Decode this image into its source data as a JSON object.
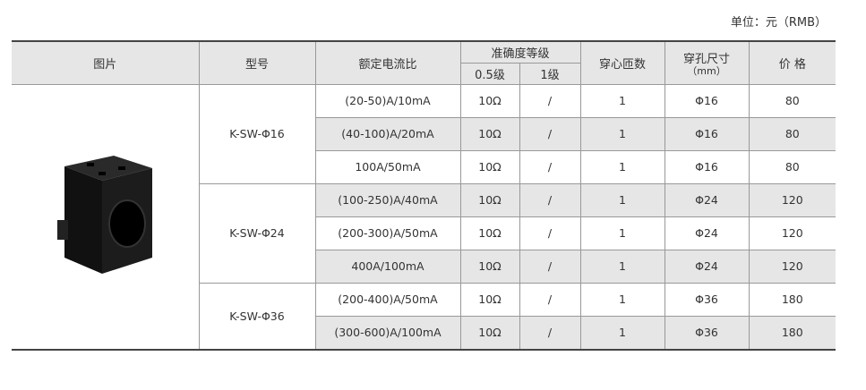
{
  "unit": "单位：元（RMB）",
  "headers": {
    "image": "图片",
    "model": "型号",
    "ratio": "额定电流比",
    "accuracy": "准确度等级",
    "acc05": "0.5级",
    "acc1": "1级",
    "turns": "穿心匝数",
    "hole": "穿孔尺寸",
    "hole_unit": "（mm）",
    "price": "价 格"
  },
  "groups": [
    {
      "model": "K-SW-Φ16",
      "rows": [
        {
          "ratio": "(20-50)A/10mA",
          "acc05": "10Ω",
          "acc1": "/",
          "turns": "1",
          "hole": "Φ16",
          "price": "80"
        },
        {
          "ratio": "(40-100)A/20mA",
          "acc05": "10Ω",
          "acc1": "/",
          "turns": "1",
          "hole": "Φ16",
          "price": "80"
        },
        {
          "ratio": "100A/50mA",
          "acc05": "10Ω",
          "acc1": "/",
          "turns": "1",
          "hole": "Φ16",
          "price": "80"
        }
      ]
    },
    {
      "model": "K-SW-Φ24",
      "rows": [
        {
          "ratio": "(100-250)A/40mA",
          "acc05": "10Ω",
          "acc1": "/",
          "turns": "1",
          "hole": "Φ24",
          "price": "120"
        },
        {
          "ratio": "(200-300)A/50mA",
          "acc05": "10Ω",
          "acc1": "/",
          "turns": "1",
          "hole": "Φ24",
          "price": "120"
        },
        {
          "ratio": "400A/100mA",
          "acc05": "10Ω",
          "acc1": "/",
          "turns": "1",
          "hole": "Φ24",
          "price": "120"
        }
      ]
    },
    {
      "model": "K-SW-Φ36",
      "rows": [
        {
          "ratio": "(200-400)A/50mA",
          "acc05": "10Ω",
          "acc1": "/",
          "turns": "1",
          "hole": "Φ36",
          "price": "180"
        },
        {
          "ratio": "(300-600)A/100mA",
          "acc05": "10Ω",
          "acc1": "/",
          "turns": "1",
          "hole": "Φ36",
          "price": "180"
        }
      ]
    }
  ]
}
